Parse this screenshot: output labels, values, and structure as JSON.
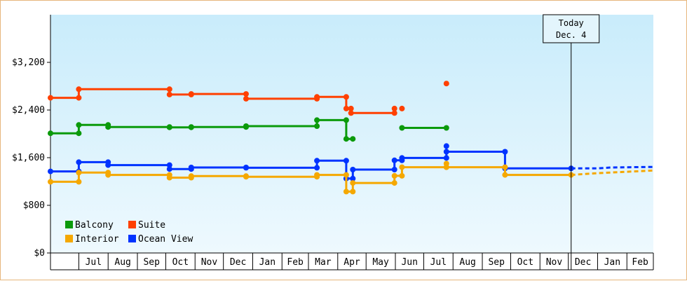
{
  "chart_data": {
    "type": "line",
    "title": "",
    "xlabel": "",
    "ylabel": "",
    "ylim": [
      0,
      4000
    ],
    "y_ticks": [
      {
        "value": 0,
        "label": "$0"
      },
      {
        "value": 800,
        "label": "$800"
      },
      {
        "value": 1600,
        "label": "$1,600"
      },
      {
        "value": 2400,
        "label": "$2,400"
      },
      {
        "value": 3200,
        "label": "$3,200"
      }
    ],
    "x_start": "2021-06-01",
    "x_end": "2023-03-01",
    "month_labels": [
      {
        "month": "2021-07",
        "label": "Jul"
      },
      {
        "month": "2021-08",
        "label": "Aug"
      },
      {
        "month": "2021-09",
        "label": "Sep"
      },
      {
        "month": "2021-10",
        "label": "Oct"
      },
      {
        "month": "2021-11",
        "label": "Nov"
      },
      {
        "month": "2021-12",
        "label": "Dec"
      },
      {
        "month": "2022-01",
        "label": "Jan"
      },
      {
        "month": "2022-02",
        "label": "Feb"
      },
      {
        "month": "2022-03",
        "label": "Mar"
      },
      {
        "month": "2022-04",
        "label": "Apr"
      },
      {
        "month": "2022-05",
        "label": "May"
      },
      {
        "month": "2022-06",
        "label": "Jun"
      },
      {
        "month": "2022-07",
        "label": "Jul"
      },
      {
        "month": "2022-08",
        "label": "Aug"
      },
      {
        "month": "2022-09",
        "label": "Sep"
      },
      {
        "month": "2022-10",
        "label": "Oct"
      },
      {
        "month": "2022-11",
        "label": "Nov"
      },
      {
        "month": "2022-12",
        "label": "Dec"
      },
      {
        "month": "2023-01",
        "label": "Jan"
      },
      {
        "month": "2023-02",
        "label": "Feb"
      }
    ],
    "today": {
      "date": "2022-12-04",
      "label_line1": "Today",
      "label_line2": "Dec. 4"
    },
    "grid": false,
    "legend_placement": "bottom-left",
    "series": [
      {
        "name": "Suite",
        "color": "#ff4000",
        "segments": [
          [
            [
              "2021-06-01",
              2605
            ],
            [
              "2021-07-01",
              2605
            ],
            [
              "2021-07-01",
              2750
            ],
            [
              "2021-10-05",
              2750
            ],
            [
              "2021-10-05",
              2660
            ],
            [
              "2021-10-28",
              2660
            ],
            [
              "2021-10-28",
              2670
            ],
            [
              "2021-12-25",
              2670
            ],
            [
              "2021-12-25",
              2590
            ],
            [
              "2022-03-10",
              2590
            ],
            [
              "2022-03-10",
              2620
            ],
            [
              "2022-04-10",
              2620
            ],
            [
              "2022-04-10",
              2425
            ],
            [
              "2022-04-15",
              2425
            ],
            [
              "2022-04-15",
              2350
            ],
            [
              "2022-05-31",
              2350
            ],
            [
              "2022-05-31",
              2425
            ]
          ],
          [
            [
              "2022-06-08",
              2425
            ]
          ],
          [
            [
              "2022-07-25",
              2845
            ]
          ]
        ]
      },
      {
        "name": "Balcony",
        "color": "#0b9a0b",
        "segments": [
          [
            [
              "2021-06-01",
              2010
            ],
            [
              "2021-07-01",
              2010
            ],
            [
              "2021-07-01",
              2150
            ],
            [
              "2021-08-01",
              2150
            ],
            [
              "2021-08-01",
              2115
            ],
            [
              "2021-10-05",
              2115
            ],
            [
              "2021-10-05",
              2110
            ],
            [
              "2021-10-28",
              2110
            ],
            [
              "2021-10-28",
              2115
            ],
            [
              "2021-12-25",
              2115
            ],
            [
              "2021-12-25",
              2130
            ],
            [
              "2022-03-10",
              2130
            ],
            [
              "2022-03-10",
              2230
            ],
            [
              "2022-04-10",
              2230
            ],
            [
              "2022-04-10",
              1915
            ],
            [
              "2022-04-17",
              1915
            ]
          ],
          [
            [
              "2022-06-08",
              2100
            ],
            [
              "2022-07-25",
              2100
            ]
          ]
        ]
      },
      {
        "name": "Ocean View",
        "color": "#0033ff",
        "segments": [
          [
            [
              "2021-06-01",
              1370
            ],
            [
              "2021-07-01",
              1370
            ],
            [
              "2021-07-01",
              1525
            ],
            [
              "2021-08-01",
              1525
            ],
            [
              "2021-08-01",
              1475
            ],
            [
              "2021-10-05",
              1475
            ],
            [
              "2021-10-05",
              1410
            ],
            [
              "2021-10-28",
              1410
            ],
            [
              "2021-10-28",
              1435
            ],
            [
              "2021-12-25",
              1435
            ],
            [
              "2021-12-25",
              1430
            ],
            [
              "2022-03-10",
              1430
            ],
            [
              "2022-03-10",
              1550
            ],
            [
              "2022-04-10",
              1550
            ],
            [
              "2022-04-10",
              1250
            ],
            [
              "2022-04-17",
              1250
            ],
            [
              "2022-04-17",
              1400
            ],
            [
              "2022-05-31",
              1400
            ],
            [
              "2022-05-31",
              1555
            ],
            [
              "2022-06-08",
              1555
            ],
            [
              "2022-06-08",
              1595
            ],
            [
              "2022-07-25",
              1595
            ],
            [
              "2022-07-25",
              1795
            ],
            [
              "2022-07-25",
              1700
            ],
            [
              "2022-09-25",
              1700
            ],
            [
              "2022-09-25",
              1420
            ],
            [
              "2022-12-04",
              1420
            ]
          ]
        ]
      },
      {
        "name": "Interior",
        "color": "#f5a800",
        "segments": [
          [
            [
              "2021-06-01",
              1195
            ],
            [
              "2021-07-01",
              1195
            ],
            [
              "2021-07-01",
              1350
            ],
            [
              "2021-08-01",
              1350
            ],
            [
              "2021-08-01",
              1310
            ],
            [
              "2021-10-05",
              1310
            ],
            [
              "2021-10-05",
              1265
            ],
            [
              "2021-10-28",
              1265
            ],
            [
              "2021-10-28",
              1290
            ],
            [
              "2021-12-25",
              1290
            ],
            [
              "2021-12-25",
              1280
            ],
            [
              "2022-03-10",
              1280
            ],
            [
              "2022-03-10",
              1310
            ],
            [
              "2022-04-10",
              1310
            ],
            [
              "2022-04-10",
              1030
            ],
            [
              "2022-04-17",
              1030
            ],
            [
              "2022-04-17",
              1175
            ],
            [
              "2022-05-31",
              1175
            ],
            [
              "2022-05-31",
              1295
            ],
            [
              "2022-06-08",
              1295
            ],
            [
              "2022-06-08",
              1440
            ],
            [
              "2022-07-25",
              1440
            ],
            [
              "2022-07-25",
              1500
            ],
            [
              "2022-07-25",
              1440
            ],
            [
              "2022-09-25",
              1440
            ],
            [
              "2022-09-25",
              1310
            ],
            [
              "2022-12-04",
              1310
            ]
          ]
        ]
      }
    ],
    "forecast": [
      {
        "series": "Ocean View",
        "color": "#0033ff",
        "points": [
          [
            "2022-12-04",
            1420
          ],
          [
            "2023-01-01",
            1420
          ],
          [
            "2023-01-15",
            1435
          ],
          [
            "2023-03-01",
            1445
          ]
        ]
      },
      {
        "series": "Interior",
        "color": "#f5a800",
        "points": [
          [
            "2022-12-04",
            1310
          ],
          [
            "2023-01-01",
            1340
          ],
          [
            "2023-03-01",
            1385
          ]
        ]
      }
    ],
    "legend": [
      {
        "name": "Balcony",
        "color": "#0b9a0b"
      },
      {
        "name": "Suite",
        "color": "#ff4000"
      },
      {
        "name": "Interior",
        "color": "#f5a800"
      },
      {
        "name": "Ocean View",
        "color": "#0033ff"
      }
    ]
  }
}
